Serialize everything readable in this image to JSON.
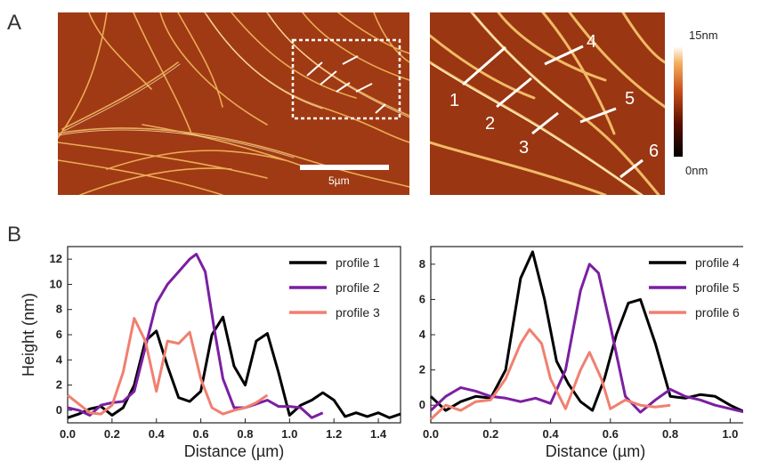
{
  "panels": {
    "a": "A",
    "b": "B"
  },
  "afm": {
    "scalebar_label": "5µm",
    "colorbar_max": "15nm",
    "colorbar_min": "0nm",
    "profile_numbers": [
      "1",
      "2",
      "3",
      "4",
      "5",
      "6"
    ],
    "colors": {
      "dark": "#2a0600",
      "mid": "#b4441a",
      "bright": "#fff3c0"
    }
  },
  "chart_data": [
    {
      "type": "line",
      "xlabel": "Distance (µm)",
      "ylabel": "Height (nm)",
      "xlim": [
        0,
        1.5
      ],
      "ylim": [
        -1,
        13
      ],
      "xticks": [
        "0.0",
        "0.2",
        "0.4",
        "0.6",
        "0.8",
        "1.0",
        "1.2",
        "1.4"
      ],
      "yticks": [
        "0",
        "2",
        "4",
        "6",
        "8",
        "10",
        "12"
      ],
      "legend_position": "top-right",
      "series": [
        {
          "name": "profile 1",
          "color": "#000000",
          "x": [
            0,
            0.05,
            0.1,
            0.15,
            0.2,
            0.25,
            0.3,
            0.35,
            0.4,
            0.45,
            0.5,
            0.55,
            0.6,
            0.65,
            0.7,
            0.75,
            0.8,
            0.85,
            0.9,
            0.95,
            1.0,
            1.05,
            1.1,
            1.15,
            1.2,
            1.25,
            1.3,
            1.35,
            1.4,
            1.45,
            1.5
          ],
          "y": [
            -0.6,
            -0.3,
            0.1,
            0.3,
            -0.4,
            0.2,
            2.0,
            5.5,
            6.3,
            3.5,
            1.0,
            0.7,
            1.5,
            6.0,
            7.4,
            3.5,
            2.0,
            5.5,
            6.1,
            3.0,
            -0.4,
            0.4,
            0.8,
            1.4,
            0.8,
            -0.5,
            -0.2,
            -0.5,
            -0.2,
            -0.6,
            -0.3
          ]
        },
        {
          "name": "profile 2",
          "color": "#7b1fa2",
          "x": [
            0,
            0.05,
            0.1,
            0.15,
            0.2,
            0.25,
            0.3,
            0.35,
            0.4,
            0.45,
            0.5,
            0.55,
            0.58,
            0.62,
            0.66,
            0.7,
            0.75,
            0.8,
            0.85,
            0.9,
            0.95,
            1.0,
            1.05,
            1.1,
            1.15
          ],
          "y": [
            0.2,
            0.0,
            -0.4,
            0.4,
            0.6,
            0.7,
            1.5,
            5.0,
            8.5,
            10.0,
            11.0,
            12.0,
            12.4,
            11.0,
            6.5,
            2.5,
            0.2,
            0.2,
            0.5,
            0.8,
            0.3,
            0.3,
            0.2,
            -0.6,
            -0.2
          ]
        },
        {
          "name": "profile 3",
          "color": "#f08070",
          "x": [
            0,
            0.05,
            0.1,
            0.15,
            0.2,
            0.25,
            0.3,
            0.35,
            0.4,
            0.45,
            0.5,
            0.55,
            0.6,
            0.65,
            0.7,
            0.75,
            0.8,
            0.85,
            0.9
          ],
          "y": [
            1.2,
            0.5,
            -0.2,
            -0.3,
            0.4,
            3.0,
            7.3,
            5.5,
            1.5,
            5.5,
            5.3,
            6.2,
            2.5,
            0.2,
            -0.3,
            0.0,
            0.2,
            0.6,
            1.2
          ]
        }
      ]
    },
    {
      "type": "line",
      "xlabel": "Distance (µm)",
      "ylabel": "",
      "xlim": [
        0,
        1.1
      ],
      "ylim": [
        -1,
        9
      ],
      "xticks": [
        "0.0",
        "0.2",
        "0.4",
        "0.6",
        "0.8",
        "1.0"
      ],
      "yticks": [
        "0",
        "2",
        "4",
        "6",
        "8"
      ],
      "legend_position": "top-right",
      "series": [
        {
          "name": "profile 4",
          "color": "#000000",
          "x": [
            0,
            0.05,
            0.1,
            0.15,
            0.2,
            0.25,
            0.3,
            0.34,
            0.38,
            0.42,
            0.46,
            0.5,
            0.54,
            0.58,
            0.62,
            0.66,
            0.7,
            0.75,
            0.8,
            0.85,
            0.9,
            0.95,
            1.0,
            1.05,
            1.1
          ],
          "y": [
            0.5,
            -0.3,
            0.2,
            0.5,
            0.4,
            2.0,
            7.2,
            8.7,
            6.0,
            2.5,
            1.2,
            0.2,
            -0.3,
            1.5,
            4.0,
            5.8,
            6.0,
            3.5,
            0.5,
            0.4,
            0.6,
            0.5,
            0.0,
            -0.4,
            -0.8
          ]
        },
        {
          "name": "profile 5",
          "color": "#7b1fa2",
          "x": [
            0,
            0.05,
            0.1,
            0.15,
            0.2,
            0.25,
            0.3,
            0.35,
            0.4,
            0.45,
            0.5,
            0.53,
            0.56,
            0.6,
            0.65,
            0.7,
            0.75,
            0.8,
            0.85,
            0.9,
            0.95,
            1.0,
            1.05,
            1.1
          ],
          "y": [
            -0.3,
            0.5,
            1.0,
            0.8,
            0.5,
            0.4,
            0.2,
            0.4,
            0.1,
            2.0,
            6.5,
            8.0,
            7.5,
            4.5,
            0.5,
            -0.4,
            0.3,
            0.9,
            0.5,
            0.3,
            0.0,
            -0.2,
            -0.4,
            -0.3
          ]
        },
        {
          "name": "profile 6",
          "color": "#f08070",
          "x": [
            0,
            0.05,
            0.1,
            0.15,
            0.2,
            0.25,
            0.3,
            0.33,
            0.37,
            0.4,
            0.45,
            0.5,
            0.53,
            0.57,
            0.6,
            0.65,
            0.7,
            0.75,
            0.8
          ],
          "y": [
            -0.8,
            0.0,
            -0.3,
            0.2,
            0.3,
            1.5,
            3.5,
            4.3,
            3.5,
            1.5,
            -0.2,
            2.0,
            3.0,
            1.5,
            -0.2,
            0.3,
            0.0,
            -0.1,
            0.0
          ]
        }
      ]
    }
  ]
}
